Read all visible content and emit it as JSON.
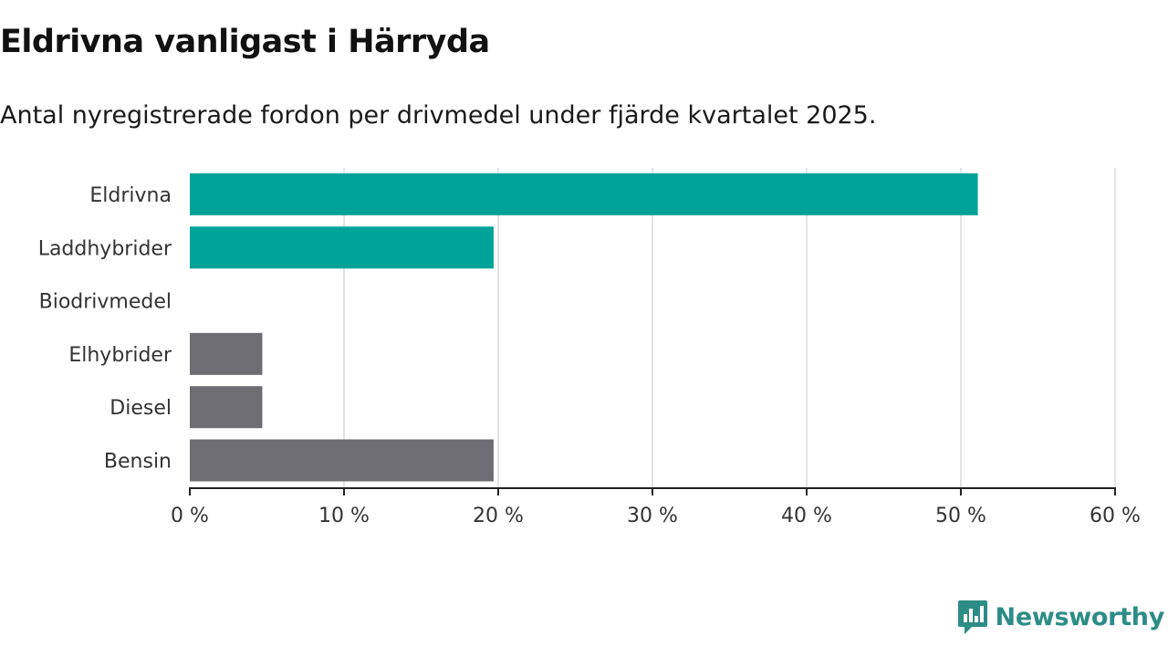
{
  "title": "Eldrivna vanligast i Härryda",
  "subtitle": "Antal nyregistrerade fordon per drivmedel under fjärde kvartalet 2025.",
  "brand": {
    "name": "Newsworthy",
    "icon": "newsworthy-logo-icon",
    "color": "#2c8d86"
  },
  "chart_data": {
    "type": "bar",
    "orientation": "horizontal",
    "title": "Eldrivna vanligast i Härryda",
    "subtitle": "Antal nyregistrerade fordon per drivmedel under fjärde kvartalet 2025.",
    "xlabel": "",
    "ylabel": "",
    "categories": [
      "Eldrivna",
      "Laddhybrider",
      "Biodrivmedel",
      "Elhybrider",
      "Diesel",
      "Bensin"
    ],
    "values": [
      51.1,
      19.7,
      0,
      4.7,
      4.7,
      19.7
    ],
    "colors": [
      "#00a39a",
      "#00a39a",
      "#00a39a",
      "#6e6d73",
      "#6e6d73",
      "#6e6d73"
    ],
    "xlim": [
      0,
      60
    ],
    "ticks": [
      0,
      10,
      20,
      30,
      40,
      50,
      60
    ],
    "tick_labels": [
      "0 %",
      "10 %",
      "20 %",
      "30 %",
      "40 %",
      "50 %",
      "60 %"
    ],
    "grid": true,
    "unit": "%"
  }
}
